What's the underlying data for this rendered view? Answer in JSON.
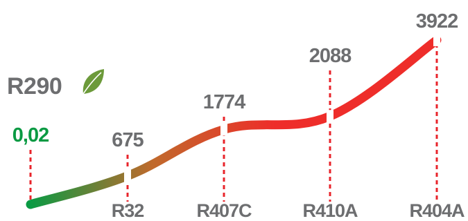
{
  "chart_data": {
    "type": "line",
    "title": "",
    "xlabel": "",
    "ylabel": "",
    "grid": false,
    "legend": "none",
    "categories": [
      "R290",
      "R32",
      "R407C",
      "R410A",
      "R404A"
    ],
    "values": [
      0.02,
      675,
      1774,
      2088,
      3922
    ],
    "value_labels": [
      "0,02",
      "675",
      "1774",
      "2088",
      "3922"
    ],
    "ylim": [
      0,
      4000
    ],
    "highlight": {
      "label": "R290",
      "icon": "leaf-icon"
    },
    "colors": {
      "start": "#0a9a43",
      "mid": "#c06a2c",
      "end": "#ee2d2a",
      "leader": "#e8242b",
      "text": "#6d6e70",
      "leaf": "#6c9a3a"
    }
  }
}
